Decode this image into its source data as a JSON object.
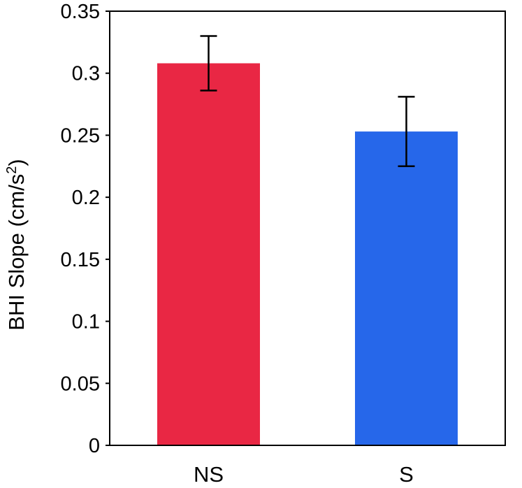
{
  "chart_data": {
    "type": "bar",
    "title": "",
    "xlabel": "",
    "ylabel": "BHI Slope (cm/s²)",
    "ylabel_main": "BHI Slope (cm/s",
    "ylabel_sup": "2",
    "ylabel_close": ")",
    "categories": [
      "NS",
      "S"
    ],
    "values": [
      0.308,
      0.253
    ],
    "errors": [
      0.022,
      0.028
    ],
    "colors": [
      "#e92744",
      "#2667ea"
    ],
    "ylim": [
      0,
      0.35
    ],
    "yticks": [
      0,
      0.05,
      0.1,
      0.15,
      0.2,
      0.25,
      0.3,
      0.35
    ],
    "ytick_labels": [
      "0",
      "0.05",
      "0.1",
      "0.15",
      "0.2",
      "0.25",
      "0.3",
      "0.35"
    ],
    "grid": false,
    "legend": "none"
  }
}
